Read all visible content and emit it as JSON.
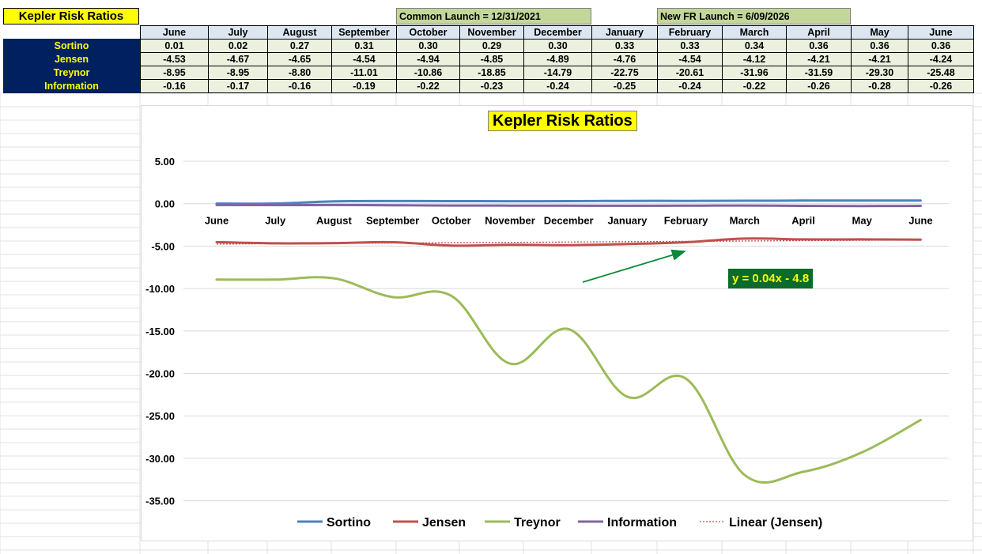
{
  "sheet": {
    "title": "Kepler Risk Ratios",
    "common_launch": "Common Launch = 12/31/2021",
    "new_fr_launch": "New FR Launch = 6/09/2026",
    "months": [
      "June",
      "July",
      "August",
      "September",
      "October",
      "November",
      "December",
      "January",
      "February",
      "March",
      "April",
      "May",
      "June"
    ],
    "rows": [
      {
        "label": "Sortino",
        "values": [
          "0.01",
          "0.02",
          "0.27",
          "0.31",
          "0.30",
          "0.29",
          "0.30",
          "0.33",
          "0.33",
          "0.34",
          "0.36",
          "0.36",
          "0.36"
        ]
      },
      {
        "label": "Jensen",
        "values": [
          "-4.53",
          "-4.67",
          "-4.65",
          "-4.54",
          "-4.94",
          "-4.85",
          "-4.89",
          "-4.76",
          "-4.54",
          "-4.12",
          "-4.21",
          "-4.21",
          "-4.24"
        ]
      },
      {
        "label": "Treynor",
        "values": [
          "-8.95",
          "-8.95",
          "-8.80",
          "-11.01",
          "-10.86",
          "-18.85",
          "-14.79",
          "-22.75",
          "-20.61",
          "-31.96",
          "-31.59",
          "-29.30",
          "-25.48"
        ]
      },
      {
        "label": "Information",
        "values": [
          "-0.16",
          "-0.17",
          "-0.16",
          "-0.19",
          "-0.22",
          "-0.23",
          "-0.24",
          "-0.25",
          "-0.24",
          "-0.22",
          "-0.26",
          "-0.28",
          "-0.26"
        ]
      }
    ]
  },
  "chart_data": {
    "type": "line",
    "title": "Kepler Risk Ratios",
    "xlabel": "",
    "ylabel": "",
    "categories": [
      "June",
      "July",
      "August",
      "September",
      "October",
      "November",
      "December",
      "January",
      "February",
      "March",
      "April",
      "May",
      "June"
    ],
    "ylim": [
      -35,
      5
    ],
    "yticks": [
      5,
      0,
      -5,
      -10,
      -15,
      -20,
      -25,
      -30,
      -35
    ],
    "ytick_labels": [
      "5.00",
      "0.00",
      "-5.00",
      "-10.00",
      "-15.00",
      "-20.00",
      "-25.00",
      "-30.00",
      "-35.00"
    ],
    "grid": true,
    "legend": "bottom",
    "smooth": true,
    "series": [
      {
        "name": "Sortino",
        "color": "#4f81bd",
        "values": [
          0.01,
          0.02,
          0.27,
          0.31,
          0.3,
          0.29,
          0.3,
          0.33,
          0.33,
          0.34,
          0.36,
          0.36,
          0.36
        ]
      },
      {
        "name": "Jensen",
        "color": "#c0504d",
        "values": [
          -4.53,
          -4.67,
          -4.65,
          -4.54,
          -4.94,
          -4.85,
          -4.89,
          -4.76,
          -4.54,
          -4.12,
          -4.21,
          -4.21,
          -4.24
        ]
      },
      {
        "name": "Treynor",
        "color": "#9bbb59",
        "values": [
          -8.95,
          -8.95,
          -8.8,
          -11.01,
          -10.86,
          -18.85,
          -14.79,
          -22.75,
          -20.61,
          -31.96,
          -31.59,
          -29.3,
          -25.48
        ]
      },
      {
        "name": "Information",
        "color": "#8064a2",
        "values": [
          -0.16,
          -0.17,
          -0.16,
          -0.19,
          -0.22,
          -0.23,
          -0.24,
          -0.25,
          -0.24,
          -0.22,
          -0.26,
          -0.28,
          -0.26
        ]
      }
    ],
    "trendline": {
      "name": "Linear (Jensen)",
      "color": "#c0504d",
      "slope": 0.04,
      "intercept": -4.8
    },
    "annotation": {
      "text": "y = 0.04x - 4.8",
      "bg_color": "#0a6b2a",
      "text_color": "#ffff00",
      "arrow_color": "#0a8a3a"
    }
  }
}
